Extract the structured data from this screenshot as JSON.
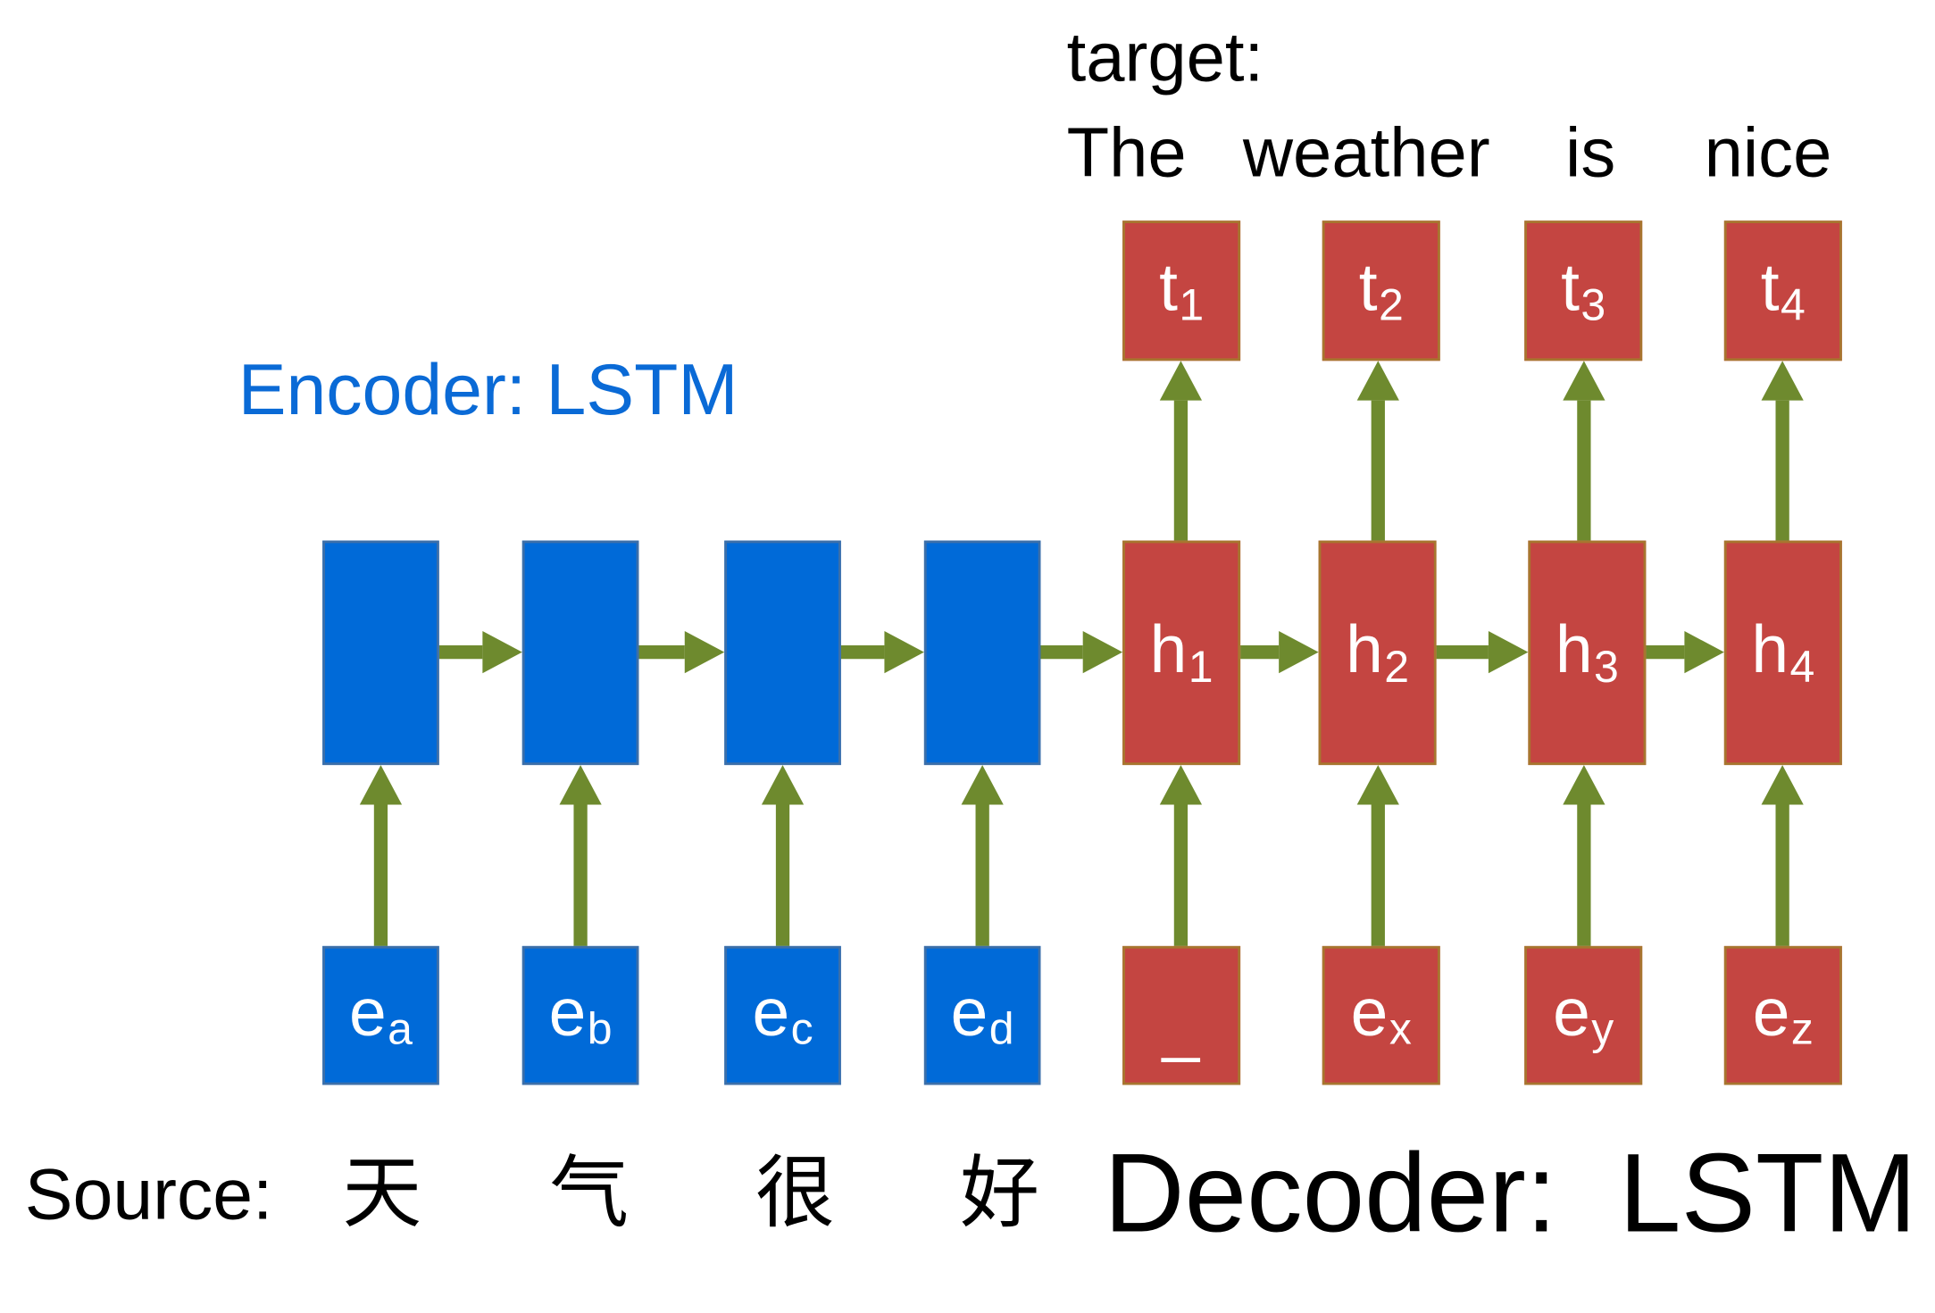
{
  "colors": {
    "encoder": "#006ad8",
    "decoder": "#c44541",
    "arrow": "#6e8a2e",
    "encoder_label": "#0a6ad6"
  },
  "labels": {
    "target_caption": "target:",
    "target_sentence": [
      "The",
      "weather",
      "is",
      "nice"
    ],
    "encoder_title": "Encoder: LSTM",
    "decoder_title": "Decoder:  LSTM",
    "source_caption": "Source:",
    "source_tokens": [
      "天",
      "气",
      "很",
      "好"
    ]
  },
  "encoder": {
    "inputs": [
      {
        "base": "e",
        "sub": "a"
      },
      {
        "base": "e",
        "sub": "b"
      },
      {
        "base": "e",
        "sub": "c"
      },
      {
        "base": "e",
        "sub": "d"
      }
    ],
    "cells": 4
  },
  "decoder": {
    "inputs": [
      {
        "base": "_",
        "sub": ""
      },
      {
        "base": "e",
        "sub": "x"
      },
      {
        "base": "e",
        "sub": "y"
      },
      {
        "base": "e",
        "sub": "z"
      }
    ],
    "hidden": [
      {
        "base": "h",
        "sub": "1"
      },
      {
        "base": "h",
        "sub": "2"
      },
      {
        "base": "h",
        "sub": "3"
      },
      {
        "base": "h",
        "sub": "4"
      }
    ],
    "outputs": [
      {
        "base": "t",
        "sub": "1"
      },
      {
        "base": "t",
        "sub": "2"
      },
      {
        "base": "t",
        "sub": "3"
      },
      {
        "base": "t",
        "sub": "4"
      }
    ]
  }
}
